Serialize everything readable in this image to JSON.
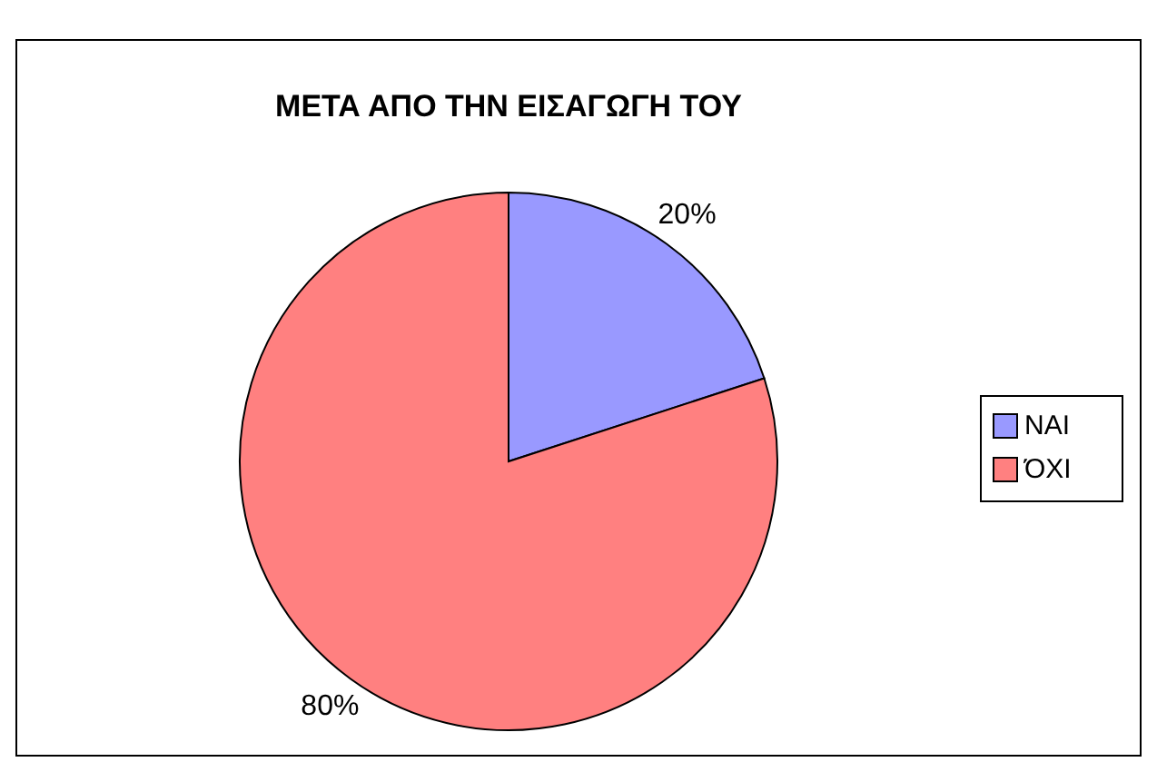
{
  "chart_data": {
    "type": "pie",
    "title": "ΜΕΤΑ ΑΠΟ ΤΗΝ ΕΙΣΑΓΩΓΗ ΤΟΥ",
    "categories": [
      "ΝΑΙ",
      "ΌΧΙ"
    ],
    "values": [
      20,
      80
    ],
    "colors": [
      "#9999ff",
      "#ff8080"
    ],
    "value_labels": [
      "20%",
      "80%"
    ],
    "legend": "right"
  }
}
